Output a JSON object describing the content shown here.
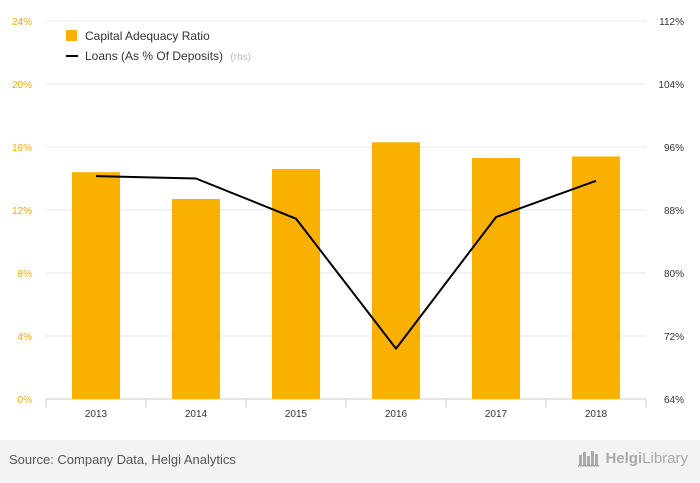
{
  "chart_data": {
    "type": "bar+line",
    "categories": [
      "2013",
      "2014",
      "2015",
      "2016",
      "2017",
      "2018"
    ],
    "series": [
      {
        "name": "Capital Adequacy Ratio",
        "type": "bar",
        "axis": "left",
        "color": "#f9b000",
        "values": [
          14.4,
          12.7,
          14.6,
          16.3,
          15.3,
          15.4
        ]
      },
      {
        "name": "Loans (As % Of Deposits)",
        "name_suffix": "(rhs)",
        "type": "line",
        "axis": "right",
        "color": "#000000",
        "values": [
          92.3,
          92.0,
          86.9,
          70.4,
          87.1,
          91.7
        ]
      }
    ],
    "y_left": {
      "ticks": [
        "0%",
        "4%",
        "8%",
        "12%",
        "16%",
        "20%",
        "24%"
      ],
      "range": [
        0,
        24
      ]
    },
    "y_right": {
      "ticks": [
        "64%",
        "72%",
        "80%",
        "88%",
        "96%",
        "104%",
        "112%"
      ],
      "range": [
        64,
        112
      ]
    },
    "legend_position": "top-left",
    "grid": true
  },
  "footer": {
    "source": "Source: Company Data, Helgi Analytics",
    "logo_prefix": "Helgi",
    "logo_suffix": "Library"
  }
}
